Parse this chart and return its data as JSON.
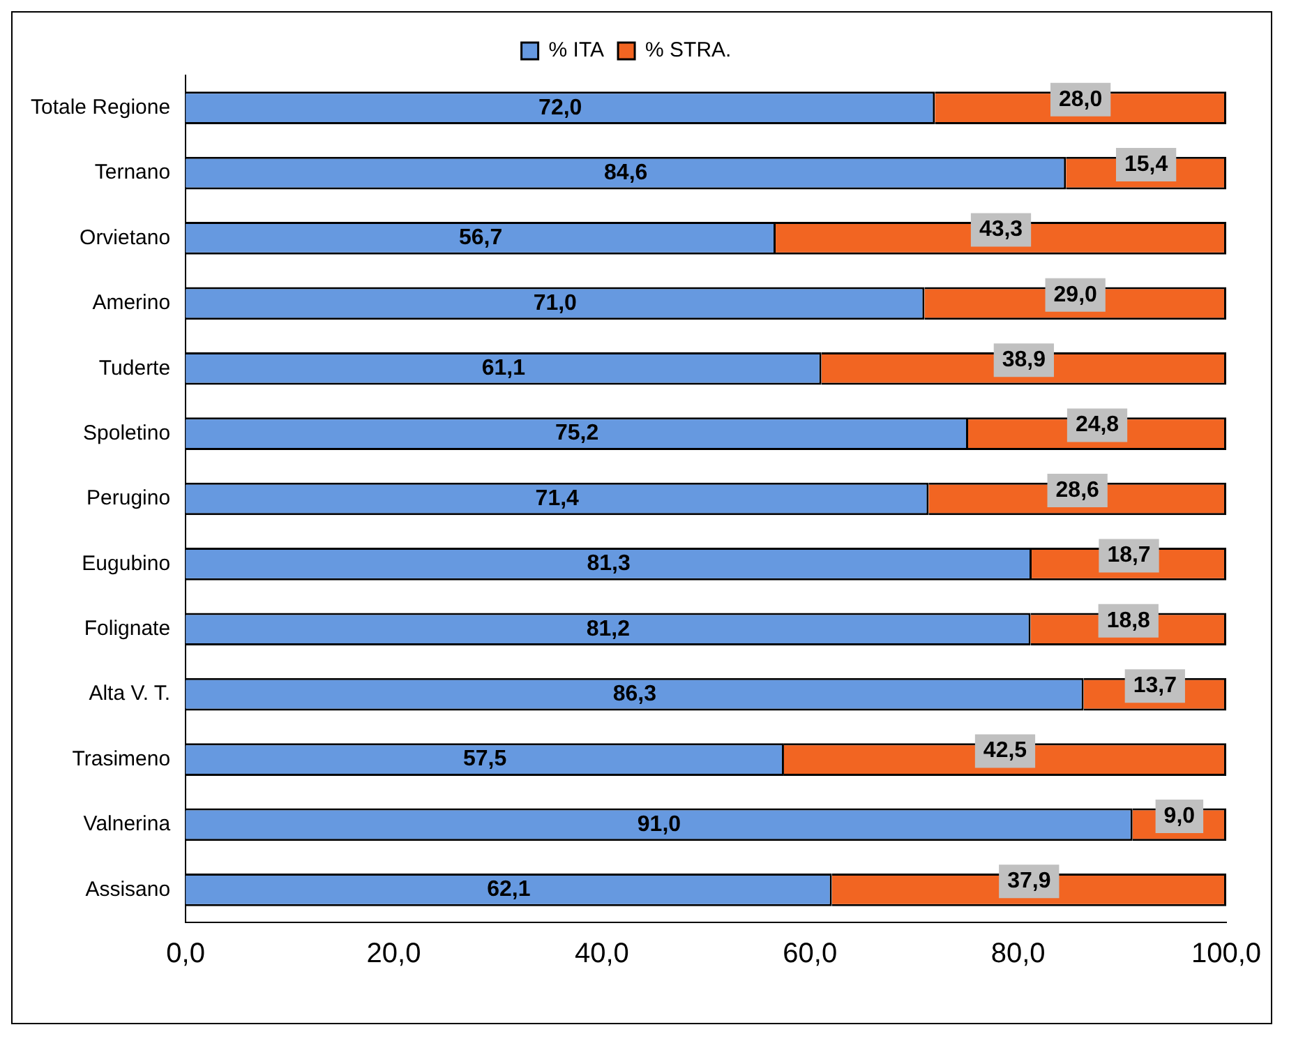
{
  "chart_data": {
    "type": "bar",
    "orientation": "horizontal",
    "stacked": true,
    "categories": [
      "Totale Regione",
      "Ternano",
      "Orvietano",
      "Amerino",
      "Tuderte",
      "Spoletino",
      "Perugino",
      "Eugubino",
      "Folignate",
      "Alta V. T.",
      "Trasimeno",
      "Valnerina",
      "Assisano"
    ],
    "series": [
      {
        "name": "% ITA",
        "color": "#6699e0",
        "values": [
          72.0,
          84.6,
          56.7,
          71.0,
          61.1,
          75.2,
          71.4,
          81.3,
          81.2,
          86.3,
          57.5,
          91.0,
          62.1
        ],
        "value_labels": [
          "72,0",
          "84,6",
          "56,7",
          "71,0",
          "61,1",
          "75,2",
          "71,4",
          "81,3",
          "81,2",
          "86,3",
          "57,5",
          "91,0",
          "62,1"
        ]
      },
      {
        "name": "% STRA.",
        "color": "#f26522",
        "values": [
          28.0,
          15.4,
          43.3,
          29.0,
          38.9,
          24.8,
          28.6,
          18.7,
          18.8,
          13.7,
          42.5,
          9.0,
          37.9
        ],
        "value_labels": [
          "28,0",
          "15,4",
          "43,3",
          "29,0",
          "38,9",
          "24,8",
          "28,6",
          "18,7",
          "18,8",
          "13,7",
          "42,5",
          "9,0",
          "37,9"
        ]
      }
    ],
    "xlim": [
      0,
      100
    ],
    "xticks": [
      {
        "value": 0,
        "label": "0,0"
      },
      {
        "value": 20,
        "label": "20,0"
      },
      {
        "value": 40,
        "label": "40,0"
      },
      {
        "value": 60,
        "label": "60,0"
      },
      {
        "value": 80,
        "label": "80,0"
      },
      {
        "value": 100,
        "label": "100,0"
      }
    ],
    "grid": false,
    "legend": "top"
  }
}
